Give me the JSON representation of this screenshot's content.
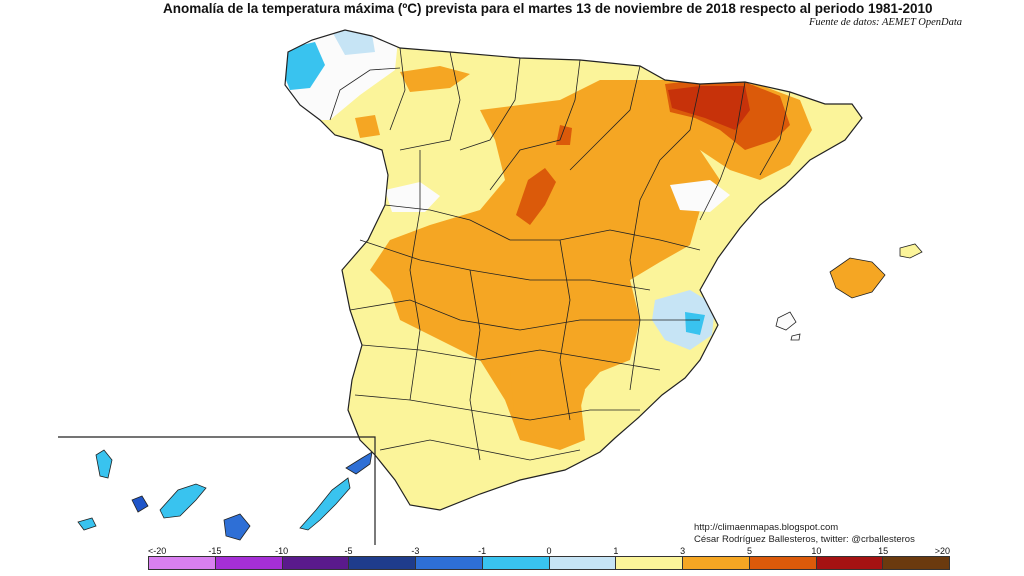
{
  "title": "Anomalía de la temperatura máxima (ºC) prevista para el martes 13 de noviembre de 2018 respecto al periodo 1981-2010",
  "source": "Fuente de datos: AEMET OpenData",
  "credits": {
    "url": "http://climaenmapas.blogspot.com",
    "author": "César Rodríguez Ballesteros, twitter: @crballesteros"
  },
  "legend": {
    "ticks": [
      "<-20",
      "-15",
      "-10",
      "-5",
      "-3",
      "-1",
      "0",
      "1",
      "3",
      "5",
      "10",
      "15",
      ">20"
    ],
    "colors": [
      "#d97ff0",
      "#a52fd6",
      "#5a1a8c",
      "#1f3c8c",
      "#2e6fd6",
      "#39c3ef",
      "#c6e4f5",
      "#ffffff",
      "#fbf49a",
      "#f5a623",
      "#db5a0a",
      "#a51212",
      "#6b3a0e"
    ]
  },
  "colors": {
    "anomaly_0_1": "#fbfbfb",
    "anomaly_1_3": "#fbf49a",
    "anomaly_3_5": "#f5a623",
    "anomaly_5_10": "#db5a0a",
    "anomaly_neg": "#39c3ef",
    "anomaly_neg_small": "#c6e4f5",
    "border": "#222222"
  }
}
